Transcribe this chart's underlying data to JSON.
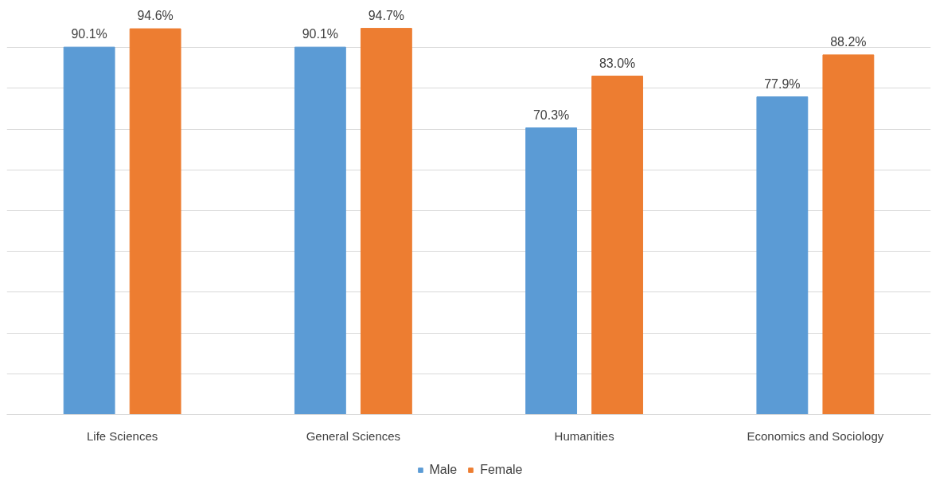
{
  "chart_data": {
    "type": "bar",
    "categories": [
      "Life Sciences",
      "General Sciences",
      "Humanities",
      "Economics and Sociology"
    ],
    "series": [
      {
        "name": "Male",
        "color": "#5b9bd5",
        "values": [
          90.1,
          90.1,
          70.3,
          77.9
        ],
        "value_labels": [
          "90.1%",
          "90.1%",
          "70.3%",
          "77.9%"
        ]
      },
      {
        "name": "Female",
        "color": "#ed7d31",
        "values": [
          94.6,
          94.7,
          83.0,
          88.2
        ],
        "value_labels": [
          "94.6%",
          "94.7%",
          "83.0%",
          "88.2%"
        ]
      }
    ],
    "yticks": [
      {
        "value": 0,
        "label": null
      },
      {
        "value": 10,
        "label": null
      },
      {
        "value": 20,
        "label": null
      },
      {
        "value": 30,
        "label": null
      },
      {
        "value": 40,
        "label": null
      },
      {
        "value": 50,
        "label": null
      },
      {
        "value": 60,
        "label": null
      },
      {
        "value": 70,
        "label": null
      },
      {
        "value": 80,
        "label": null
      },
      {
        "value": 90,
        "label": null
      }
    ],
    "grid": "y",
    "legend": "bottom",
    "tick_labels": "x"
  }
}
